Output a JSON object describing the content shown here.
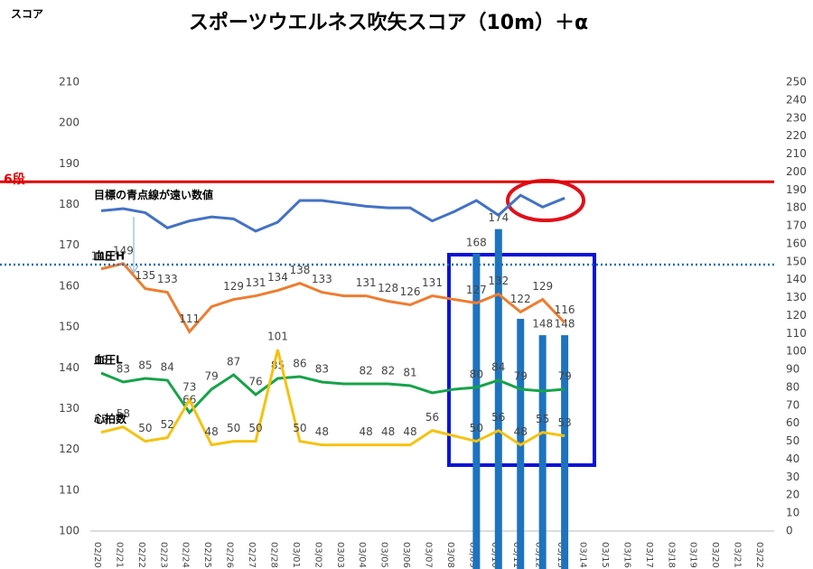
{
  "chart_data": {
    "type": "combo",
    "title": "スポーツウエルネス吹矢スコア（10m）＋α",
    "y_label": "スコア",
    "categories": [
      "02/20",
      "02/21",
      "02/22",
      "02/23",
      "02/24",
      "02/25",
      "02/26",
      "02/27",
      "02/28",
      "03/01",
      "03/02",
      "03/03",
      "03/04",
      "03/05",
      "03/06",
      "03/07",
      "03/08",
      "03/09",
      "03/10",
      "03/11",
      "03/12",
      "03/13",
      "03/14",
      "03/15",
      "03/16",
      "03/17",
      "03/18",
      "03/19",
      "03/20",
      "03/21",
      "03/22"
    ],
    "ylim": [
      100,
      210
    ],
    "yticks": [
      100,
      110,
      120,
      130,
      140,
      150,
      160,
      170,
      180,
      190,
      200,
      210
    ],
    "y2lim": [
      0,
      250
    ],
    "y2ticks": [
      0,
      10,
      20,
      30,
      40,
      50,
      60,
      70,
      80,
      90,
      100,
      110,
      120,
      130,
      140,
      150,
      160,
      170,
      180,
      190,
      200,
      210,
      220,
      230,
      240,
      250
    ],
    "grid": false,
    "bars": {
      "color": "#1e73be",
      "values": [
        null,
        null,
        null,
        null,
        null,
        null,
        null,
        null,
        null,
        null,
        null,
        null,
        null,
        null,
        null,
        null,
        null,
        168,
        174,
        152,
        148,
        148,
        null,
        null,
        null,
        null,
        null,
        null,
        null,
        null,
        null
      ],
      "value_labels": [
        null,
        null,
        null,
        null,
        null,
        null,
        null,
        null,
        null,
        null,
        null,
        null,
        null,
        null,
        null,
        null,
        null,
        "168",
        "174",
        null,
        "148",
        "148",
        null,
        null,
        null,
        null,
        null,
        null,
        null,
        null,
        null
      ]
    },
    "series": [
      {
        "name": "目標の青点線が遠い数値",
        "color": "#4472c4",
        "values": [
          178.5,
          179,
          178,
          174.3,
          176,
          177,
          176.5,
          173.5,
          175.7,
          181,
          181,
          180.3,
          179.6,
          179.2,
          179.2,
          176,
          178.3,
          181,
          177.4,
          182.3,
          179.4,
          181.6,
          null,
          null,
          null,
          null,
          null,
          null,
          null,
          null,
          null
        ]
      },
      {
        "name": "血圧H",
        "color": "#ed7d31",
        "axis": "y2",
        "values": [
          146,
          149,
          135,
          133,
          111,
          125,
          129,
          131,
          134,
          138,
          133,
          131,
          131,
          128,
          126,
          131,
          129,
          127,
          132,
          122,
          129,
          116,
          null,
          null,
          null,
          null,
          null,
          null,
          null,
          null,
          null
        ],
        "value_labels": [
          "146",
          "149",
          "135",
          "133",
          "111",
          null,
          "129",
          "131",
          "134",
          "138",
          "133",
          null,
          "131",
          "128",
          "126",
          "131",
          null,
          "127",
          "132",
          "122",
          "129",
          "116",
          null,
          null,
          null,
          null,
          null,
          null,
          null,
          null,
          null
        ]
      },
      {
        "name": "血圧L",
        "color": "#17a34a",
        "axis": "y2",
        "values": [
          88,
          83,
          85,
          84,
          66,
          79,
          87,
          76,
          85,
          86,
          83,
          82,
          82,
          82,
          81,
          77,
          79,
          80,
          84,
          79,
          78,
          79,
          null,
          null,
          null,
          null,
          null,
          null,
          null,
          null,
          null
        ],
        "value_labels": [
          "88",
          "83",
          "85",
          "84",
          "66",
          "79",
          "87",
          "76",
          "85",
          "86",
          "83",
          null,
          "82",
          "82",
          "81",
          null,
          null,
          "80",
          "84",
          "79",
          null,
          "79",
          null,
          null,
          null,
          null,
          null,
          null,
          null,
          null,
          null
        ]
      },
      {
        "name": "心拍数",
        "color": "#f5c211",
        "axis": "y2",
        "values": [
          55,
          58,
          50,
          52,
          73,
          48,
          50,
          50,
          101,
          50,
          48,
          48,
          48,
          48,
          48,
          56,
          53,
          50,
          56,
          48,
          55,
          53,
          null,
          null,
          null,
          null,
          null,
          null,
          null,
          null,
          null
        ],
        "value_labels": [
          "55",
          "58",
          "50",
          "52",
          "73",
          "48",
          "50",
          "50",
          "101",
          "50",
          "48",
          null,
          "48",
          "48",
          "48",
          "56",
          null,
          "50",
          "56",
          "48",
          "55",
          "53",
          null,
          null,
          null,
          null,
          null,
          null,
          null,
          null,
          null
        ]
      }
    ],
    "ref_lines": [
      {
        "label": "6段",
        "value": 185.6,
        "color": "#e00000"
      },
      {
        "value": 165.3,
        "color": "#1f6fb5",
        "dash": true
      }
    ]
  }
}
